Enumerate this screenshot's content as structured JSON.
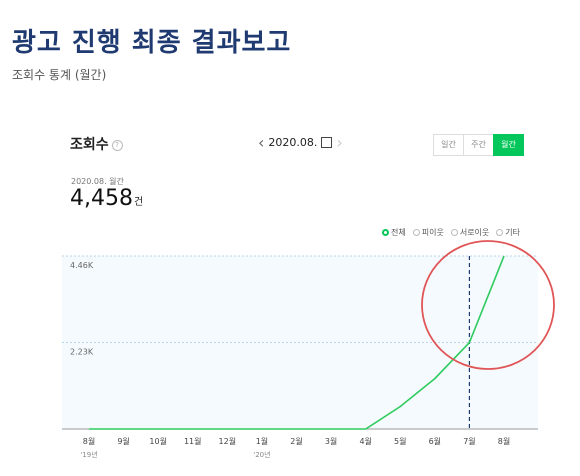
{
  "page": {
    "title": "광고 진행 최종 결과보고",
    "subtitle": "조회수 통계 (월간)"
  },
  "card": {
    "metric_label": "조회수",
    "help_symbol": "?",
    "date": "2020.08.",
    "period_tabs": [
      "일간",
      "주간",
      "월간"
    ],
    "active_period": "월간",
    "summary_label": "2020.08. 월간",
    "summary_value": "4,458",
    "summary_unit": "건",
    "legend": [
      "전체",
      "피이웃",
      "서로이웃",
      "기타"
    ],
    "legend_selected": "전체"
  },
  "chart_data": {
    "type": "line",
    "series": [
      {
        "name": "전체",
        "values": [
          0,
          0,
          0,
          0,
          0,
          0,
          0,
          0,
          0,
          580,
          1300,
          2230,
          4458
        ]
      }
    ],
    "x_tick_labels": [
      "8월",
      "9월",
      "10월",
      "11월",
      "12월",
      "1월",
      "2월",
      "3월",
      "4월",
      "5월",
      "6월",
      "7월",
      "8월"
    ],
    "year_labels": [
      {
        "index": 0,
        "label": "'19년"
      },
      {
        "index": 5,
        "label": "'20년"
      }
    ],
    "y_tick_labels": [
      "2.23K",
      "4.46K"
    ],
    "y_tick_values": [
      2230,
      4460
    ],
    "ylim": [
      0,
      4460
    ],
    "highlight_index": 11,
    "colors": {
      "line": "#2ecc5e",
      "plot_bg": "#f5fafe",
      "grid": "#b8d4e6",
      "marker": "#1f3a70",
      "circle": "#e05555"
    }
  }
}
